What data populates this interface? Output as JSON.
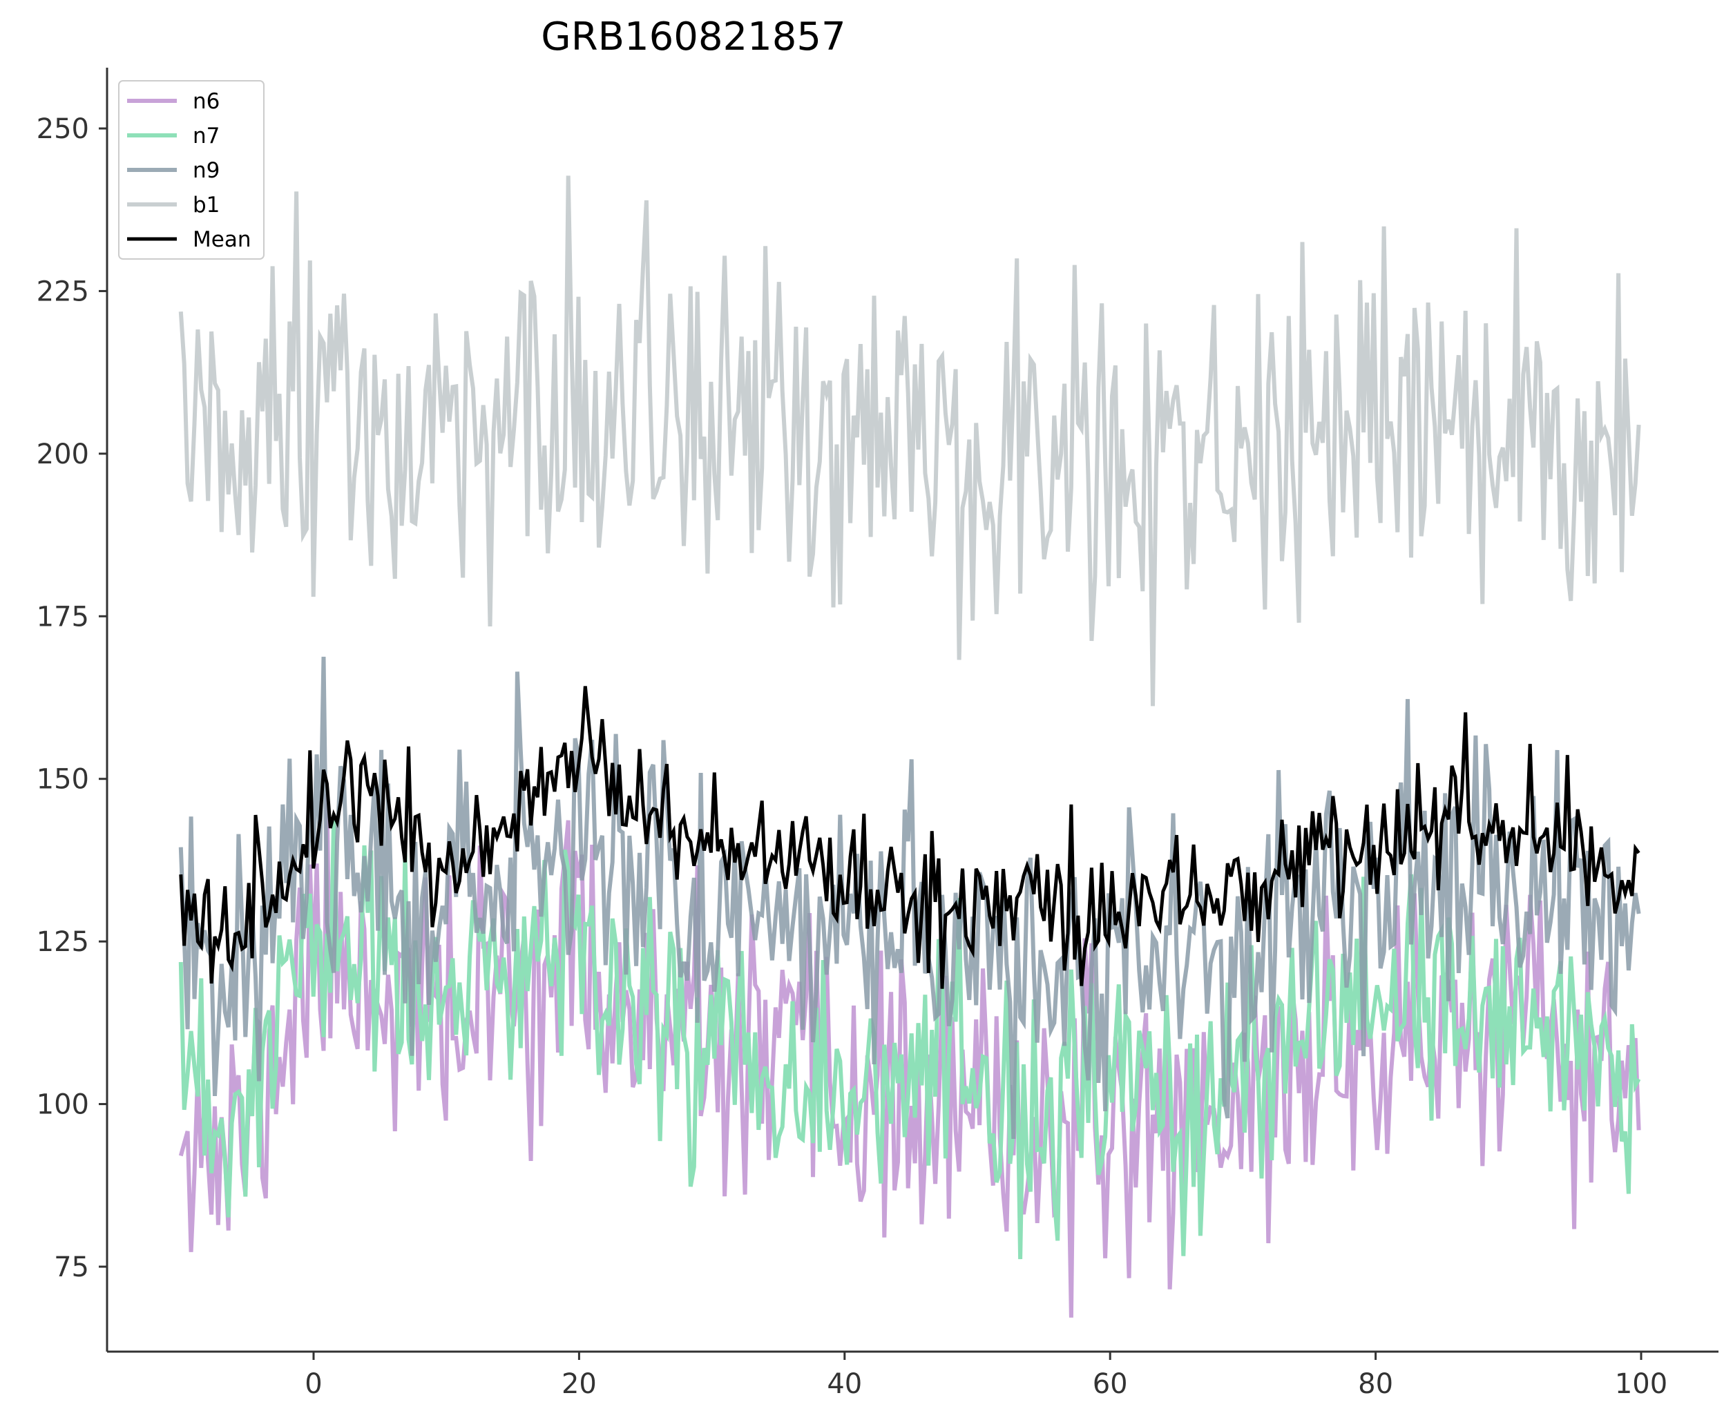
{
  "chart_data": {
    "type": "line",
    "title": "GRB160821857",
    "xlabel": "",
    "ylabel": "",
    "xlim": [
      -14,
      105
    ],
    "ylim": [
      62.5,
      260
    ],
    "xticks": [
      0,
      20,
      40,
      60,
      80,
      100
    ],
    "yticks": [
      75,
      100,
      125,
      150,
      175,
      200,
      225,
      250
    ],
    "grid": false,
    "legend_position": "top-left",
    "x_range": [
      -10,
      100
    ],
    "x_step": 0.256,
    "series": [
      {
        "name": "n6",
        "color": "#c8a2d8",
        "opacity": 1.0,
        "stroke": 6,
        "baseline_points": [
          [
            -10,
            104
          ],
          [
            -7,
            90
          ],
          [
            -4,
            100
          ],
          [
            0,
            125
          ],
          [
            4,
            121
          ],
          [
            10,
            111
          ],
          [
            16,
            121
          ],
          [
            21,
            123
          ],
          [
            24,
            111
          ],
          [
            30,
            108
          ],
          [
            40,
            102
          ],
          [
            50,
            97
          ],
          [
            58,
            95
          ],
          [
            66,
            99
          ],
          [
            70,
            100
          ],
          [
            76,
            108
          ],
          [
            82,
            110
          ],
          [
            88,
            112
          ],
          [
            94,
            108
          ],
          [
            100,
            101
          ]
        ],
        "noise": 10.5,
        "seed": 11
      },
      {
        "name": "n7",
        "color": "#8ee0b8",
        "opacity": 1.0,
        "stroke": 6,
        "baseline_points": [
          [
            -10,
            103
          ],
          [
            -7,
            94
          ],
          [
            -4,
            104
          ],
          [
            0,
            126
          ],
          [
            4,
            123
          ],
          [
            10,
            113
          ],
          [
            16,
            123
          ],
          [
            21,
            127
          ],
          [
            24,
            114
          ],
          [
            30,
            111
          ],
          [
            40,
            104
          ],
          [
            50,
            100
          ],
          [
            58,
            99
          ],
          [
            66,
            101
          ],
          [
            70,
            103
          ],
          [
            76,
            111
          ],
          [
            82,
            113
          ],
          [
            88,
            115
          ],
          [
            94,
            111
          ],
          [
            100,
            104
          ]
        ],
        "noise": 9.5,
        "seed": 23
      },
      {
        "name": "n9",
        "color": "#8a9ba8",
        "opacity": 0.85,
        "stroke": 6,
        "baseline_points": [
          [
            -10,
            128
          ],
          [
            -7,
            121
          ],
          [
            -4,
            129
          ],
          [
            0,
            140
          ],
          [
            4,
            139
          ],
          [
            10,
            131
          ],
          [
            16,
            136
          ],
          [
            21,
            146
          ],
          [
            24,
            138
          ],
          [
            30,
            131
          ],
          [
            40,
            127
          ],
          [
            50,
            123
          ],
          [
            58,
            121
          ],
          [
            66,
            124
          ],
          [
            70,
            125
          ],
          [
            76,
            131
          ],
          [
            82,
            133
          ],
          [
            88,
            135
          ],
          [
            94,
            132
          ],
          [
            100,
            126
          ]
        ],
        "noise": 10,
        "seed": 37
      },
      {
        "name": "b1",
        "color": "#c9cfd1",
        "opacity": 1.0,
        "stroke": 6,
        "baseline_points": [
          [
            -10,
            199
          ],
          [
            0,
            203
          ],
          [
            10,
            204
          ],
          [
            20,
            206
          ],
          [
            30,
            203
          ],
          [
            40,
            201
          ],
          [
            50,
            199
          ],
          [
            60,
            196
          ],
          [
            70,
            198
          ],
          [
            80,
            201
          ],
          [
            90,
            203
          ],
          [
            100,
            198
          ]
        ],
        "noise": 13,
        "seed": 51
      },
      {
        "name": "Mean",
        "color": "#000000",
        "opacity": 1.0,
        "stroke": 5,
        "baseline_points": [
          [
            -10,
            129
          ],
          [
            -7,
            124
          ],
          [
            -4,
            131
          ],
          [
            0,
            147
          ],
          [
            4,
            146
          ],
          [
            10,
            139
          ],
          [
            16,
            143
          ],
          [
            21,
            155
          ],
          [
            24,
            146
          ],
          [
            30,
            139
          ],
          [
            40,
            135
          ],
          [
            50,
            131
          ],
          [
            58,
            128
          ],
          [
            66,
            132
          ],
          [
            70,
            133
          ],
          [
            76,
            140
          ],
          [
            82,
            142
          ],
          [
            88,
            143
          ],
          [
            94,
            139
          ],
          [
            100,
            134
          ]
        ],
        "noise": 5,
        "seed": 77
      }
    ]
  }
}
